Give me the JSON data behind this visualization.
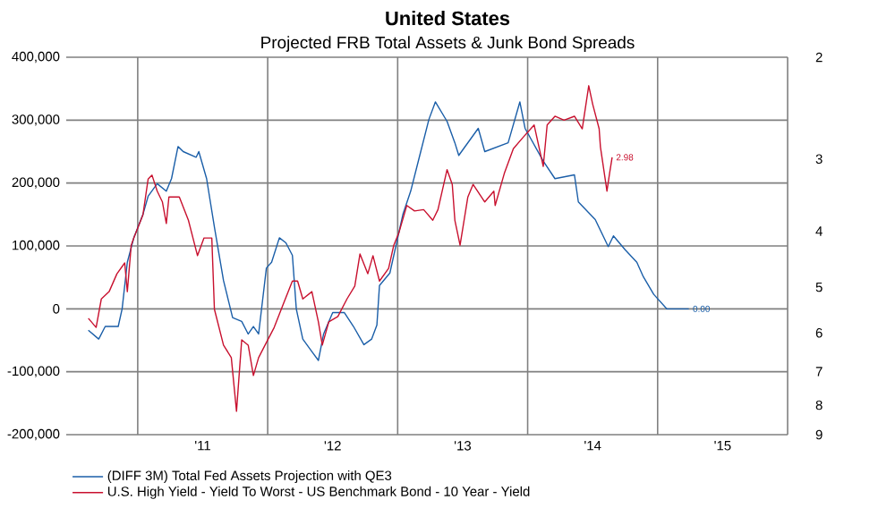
{
  "chart_data": {
    "type": "line",
    "title": "United States",
    "subtitle": "Projected FRB Total Assets & Junk Bond Spreads",
    "xlim": [
      "2010-06-15",
      "2016-01-01"
    ],
    "xticks": [
      {
        "value": "2011-01-01",
        "label": null
      },
      {
        "value": "2012-01-01",
        "label": null
      },
      {
        "value": "2013-01-01",
        "label": null
      },
      {
        "value": "2014-01-01",
        "label": null
      },
      {
        "value": "2015-01-01",
        "label": null
      },
      {
        "value": "2016-01-01",
        "label": null
      },
      {
        "value": "2011-07-02",
        "label": "'11"
      },
      {
        "value": "2012-07-02",
        "label": "'12"
      },
      {
        "value": "2013-07-02",
        "label": "'13"
      },
      {
        "value": "2014-07-02",
        "label": "'14"
      },
      {
        "value": "2015-07-02",
        "label": "'15"
      }
    ],
    "ylim": [
      -200000,
      400000
    ],
    "yticks": [
      {
        "value": -200000,
        "label": "-200,000"
      },
      {
        "value": -100000,
        "label": "-100,000"
      },
      0,
      {
        "value": 100000,
        "label": "100,000"
      },
      {
        "value": 200000,
        "label": "200,000"
      },
      {
        "value": 300000,
        "label": "300,000"
      },
      {
        "value": 400000,
        "label": "400,000"
      }
    ],
    "y2lim": [
      9,
      2
    ],
    "y2ticks": [
      2,
      3,
      4,
      5,
      6,
      7,
      8,
      9
    ],
    "log": "y2",
    "grid": true,
    "legend": "bottom",
    "series": [
      {
        "name": "(DIFF 3M) Total Fed Assets Projection with QE3",
        "color": "#1a5ea8",
        "x": [
          "2010-08-16",
          "2010-09-15",
          "2010-09-30",
          "2010-11-08",
          "2010-11-18",
          "2010-12-02",
          "2010-12-22",
          "2011-01-16",
          "2011-01-31",
          "2011-02-24",
          "2011-03-21",
          "2011-04-05",
          "2011-04-24",
          "2011-05-09",
          "2011-06-13",
          "2011-06-23",
          "2011-07-12",
          "2011-08-06",
          "2011-08-31",
          "2011-09-24",
          "2011-10-19",
          "2011-11-08",
          "2011-11-23",
          "2011-12-07",
          "2011-12-27",
          "2012-01-11",
          "2012-02-04",
          "2012-02-23",
          "2012-03-10",
          "2012-03-20",
          "2012-04-09",
          "2012-05-03",
          "2012-05-23",
          "2012-06-07",
          "2012-07-01",
          "2012-08-05",
          "2012-08-30",
          "2012-09-28",
          "2012-10-18",
          "2012-11-02",
          "2012-11-12",
          "2012-12-11",
          "2013-01-15",
          "2013-02-08",
          "2013-03-05",
          "2013-03-30",
          "2013-04-18",
          "2013-05-18",
          "2013-06-12",
          "2013-06-22",
          "2013-08-15",
          "2013-09-04",
          "2013-11-07",
          "2013-12-11",
          "2013-12-26",
          "2014-02-13",
          "2014-03-20",
          "2014-05-13",
          "2014-05-23",
          "2014-07-11",
          "2014-08-15",
          "2014-08-30",
          "2014-10-03",
          "2014-11-02",
          "2014-11-21",
          "2014-12-21",
          "2015-01-25",
          "2015-03-30"
        ],
        "values": [
          -34000,
          -48000,
          -28000,
          -28000,
          0,
          74000,
          113000,
          150000,
          179000,
          199000,
          187000,
          207000,
          258000,
          250000,
          241000,
          250000,
          207000,
          130000,
          45000,
          -14000,
          -20000,
          -40000,
          -28000,
          -40000,
          65000,
          74000,
          113000,
          105000,
          85000,
          0,
          -48000,
          -68000,
          -82000,
          -40000,
          -6000,
          -6000,
          -28000,
          -57000,
          -48000,
          -26000,
          37000,
          57000,
          150000,
          187000,
          244000,
          301000,
          329000,
          298000,
          264000,
          244000,
          287000,
          250000,
          264000,
          329000,
          287000,
          235000,
          207000,
          213000,
          170000,
          142000,
          99000,
          116000,
          94000,
          74000,
          51000,
          23000,
          0,
          0
        ],
        "value_labels": [
          null,
          null,
          null,
          null,
          null,
          null,
          null,
          null,
          null,
          null,
          null,
          null,
          null,
          null,
          null,
          null,
          null,
          null,
          null,
          null,
          null,
          null,
          null,
          null,
          null,
          null,
          null,
          null,
          null,
          null,
          null,
          null,
          null,
          null,
          null,
          null,
          null,
          null,
          null,
          null,
          null,
          null,
          null,
          null,
          null,
          null,
          null,
          null,
          null,
          null,
          null,
          null,
          null,
          null,
          null,
          null,
          null,
          null,
          null,
          null,
          null,
          null,
          null,
          null,
          null,
          null,
          null,
          "0.00"
        ]
      },
      {
        "name": "U.S. High Yield - Yield To Worst - US Benchmark Bond - 10 Year - Yield",
        "color": "#c8102e",
        "axis": "y2",
        "x": [
          "2010-08-16",
          "2010-09-05",
          "2010-09-19",
          "2010-10-14",
          "2010-11-03",
          "2010-11-27",
          "2010-12-02",
          "2010-12-12",
          "2010-12-22",
          "2011-01-16",
          "2011-01-31",
          "2011-02-09",
          "2011-02-24",
          "2011-03-11",
          "2011-03-21",
          "2011-03-31",
          "2011-04-29",
          "2011-05-24",
          "2011-06-18",
          "2011-07-07",
          "2011-07-27",
          "2011-08-06",
          "2011-08-31",
          "2011-09-19",
          "2011-10-04",
          "2011-10-19",
          "2011-11-08",
          "2011-11-23",
          "2011-12-07",
          "2012-01-01",
          "2012-01-21",
          "2012-02-14",
          "2012-03-10",
          "2012-03-25",
          "2012-04-09",
          "2012-05-03",
          "2012-05-23",
          "2012-06-02",
          "2012-06-22",
          "2012-07-16",
          "2012-08-10",
          "2012-09-04",
          "2012-09-18",
          "2012-10-08",
          "2012-10-23",
          "2012-11-12",
          "2012-12-06",
          "2012-12-21",
          "2013-01-05",
          "2013-01-25",
          "2013-02-18",
          "2013-03-15",
          "2013-04-09",
          "2013-04-23",
          "2013-05-18",
          "2013-06-02",
          "2013-06-12",
          "2013-06-26",
          "2013-07-16",
          "2013-07-31",
          "2013-09-04",
          "2013-09-28",
          "2013-10-03",
          "2013-10-28",
          "2013-11-21",
          "2013-12-16",
          "2014-01-20",
          "2014-02-13",
          "2014-02-23",
          "2014-03-20",
          "2014-04-13",
          "2014-05-13",
          "2014-06-02",
          "2014-06-22",
          "2014-07-01",
          "2014-07-21",
          "2014-07-26",
          "2014-08-10",
          "2014-08-20",
          "2014-08-25"
        ],
        "values": [
          5.66,
          5.87,
          5.24,
          5.09,
          4.74,
          4.54,
          5.09,
          4.23,
          4.11,
          3.75,
          3.25,
          3.2,
          3.41,
          3.56,
          3.88,
          3.49,
          3.49,
          3.83,
          4.41,
          4.11,
          4.11,
          5.46,
          6.3,
          6.62,
          8.2,
          6.17,
          6.3,
          7.11,
          6.62,
          6.17,
          5.87,
          5.35,
          4.88,
          4.88,
          5.24,
          5.09,
          5.74,
          6.3,
          5.74,
          5.62,
          5.24,
          4.98,
          4.38,
          4.74,
          4.41,
          4.88,
          4.64,
          4.23,
          4.02,
          3.61,
          3.69,
          3.67,
          3.83,
          3.67,
          3.13,
          3.32,
          3.83,
          4.23,
          3.49,
          3.32,
          3.56,
          3.41,
          3.61,
          3.18,
          2.88,
          2.76,
          2.62,
          3.09,
          2.62,
          2.53,
          2.57,
          2.53,
          2.66,
          2.24,
          2.41,
          2.66,
          2.86,
          3.41,
          3.18,
          2.98
        ],
        "value_labels": [
          null,
          null,
          null,
          null,
          null,
          null,
          null,
          null,
          null,
          null,
          null,
          null,
          null,
          null,
          null,
          null,
          null,
          null,
          null,
          null,
          null,
          null,
          null,
          null,
          null,
          null,
          null,
          null,
          null,
          null,
          null,
          null,
          null,
          null,
          null,
          null,
          null,
          null,
          null,
          null,
          null,
          null,
          null,
          null,
          null,
          null,
          null,
          null,
          null,
          null,
          null,
          null,
          null,
          null,
          null,
          null,
          null,
          null,
          null,
          null,
          null,
          null,
          null,
          null,
          null,
          null,
          null,
          null,
          null,
          null,
          null,
          null,
          null,
          null,
          null,
          null,
          null,
          null,
          null,
          "2.98"
        ]
      }
    ]
  }
}
